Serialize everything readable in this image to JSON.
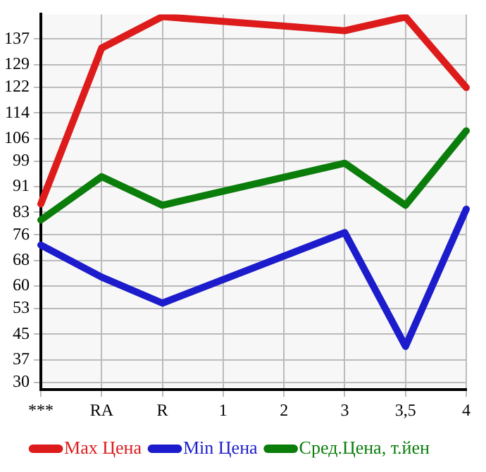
{
  "chart_data": {
    "type": "line",
    "categories": [
      "***",
      "RA",
      "R",
      "1",
      "2",
      "3",
      "3,5",
      "4"
    ],
    "series": [
      {
        "name": "Max Цена",
        "color": "#dd1b1b",
        "values": [
          85.6,
          134.2,
          144,
          null,
          null,
          139.6,
          143.9,
          121.9
        ]
      },
      {
        "name": "Min Цена",
        "color": "#1c1ccc",
        "values": [
          72.8,
          62.8,
          54.7,
          null,
          null,
          76.7,
          41.2,
          84.0
        ]
      },
      {
        "name": "Сред.Цена, т.йен",
        "color": "#0a7d0a",
        "values": [
          80.6,
          94.1,
          85.2,
          null,
          null,
          98.3,
          85.2,
          108.4
        ]
      }
    ],
    "ylim": [
      27.7,
      144.7
    ],
    "yticks": [
      30,
      37,
      45,
      53,
      60,
      68,
      76,
      83,
      91,
      99,
      106,
      114,
      122,
      129,
      137
    ],
    "grid": true,
    "legend": "bottom",
    "marker": "none",
    "line_style": "solid"
  }
}
